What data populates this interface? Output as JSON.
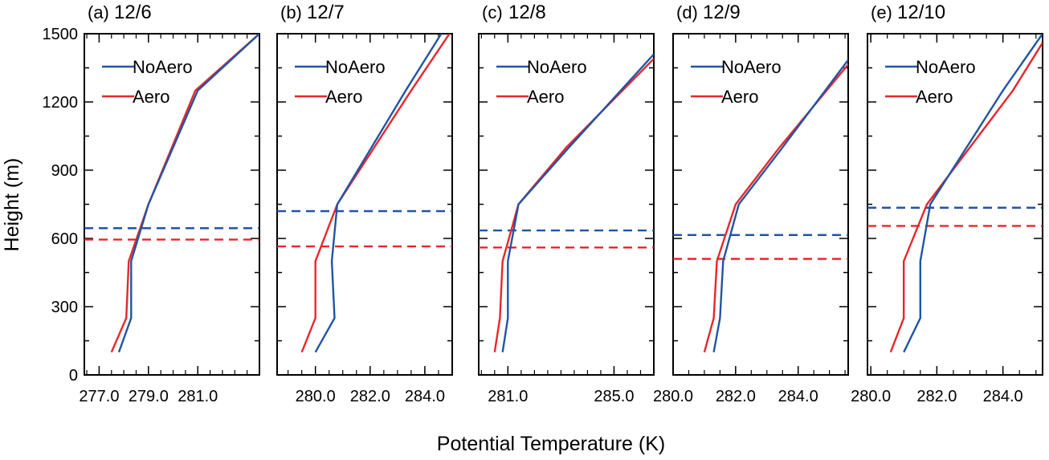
{
  "figure": {
    "xlabel": "Potential Temperature (K)",
    "ylabel": "Height (m)"
  },
  "colors": {
    "noaero": "#2155a3",
    "aero": "#e8262b"
  },
  "chart_data": [
    {
      "type": "line",
      "panel_label": "(a)",
      "title": "12/6",
      "xticks": [
        277.0,
        279.0,
        281.0
      ],
      "xtick_labels": [
        "277.0",
        "279.0",
        "281.0"
      ],
      "xlim": [
        276.4,
        283.5
      ],
      "ylim": [
        0,
        1500
      ],
      "yticks": [
        0,
        300,
        600,
        900,
        1200,
        1500
      ],
      "legend_position": "top-left",
      "series": [
        {
          "name": "NoAero",
          "x": [
            277.8,
            278.3,
            278.3,
            279.0,
            281.0,
            283.5
          ],
          "y": [
            100,
            250,
            500,
            750,
            1250,
            1500
          ]
        },
        {
          "name": "Aero",
          "x": [
            277.5,
            278.1,
            278.2,
            279.0,
            280.9,
            283.5
          ],
          "y": [
            100,
            250,
            500,
            750,
            1250,
            1500
          ]
        }
      ],
      "dashed_lines": [
        {
          "series": "NoAero",
          "y": 645
        },
        {
          "series": "Aero",
          "y": 595
        }
      ]
    },
    {
      "type": "line",
      "panel_label": "(b)",
      "title": "12/7",
      "xticks": [
        280.0,
        282.0,
        284.0
      ],
      "xtick_labels": [
        "280.0",
        "282.0",
        "284.0"
      ],
      "xlim": [
        278.6,
        285.0
      ],
      "ylim": [
        0,
        1500
      ],
      "yticks": [
        0,
        300,
        600,
        900,
        1200,
        1500
      ],
      "legend_position": "top-left",
      "series": [
        {
          "name": "NoAero",
          "x": [
            280.0,
            280.7,
            280.6,
            280.8,
            283.3,
            284.6
          ],
          "y": [
            100,
            250,
            500,
            750,
            1250,
            1500
          ]
        },
        {
          "name": "Aero",
          "x": [
            279.5,
            280.0,
            280.0,
            280.8,
            283.5,
            284.9
          ],
          "y": [
            100,
            250,
            500,
            750,
            1250,
            1500
          ]
        }
      ],
      "dashed_lines": [
        {
          "series": "NoAero",
          "y": 720
        },
        {
          "series": "Aero",
          "y": 565
        }
      ]
    },
    {
      "type": "line",
      "panel_label": "(c)",
      "title": "12/8",
      "xticks": [
        281.0,
        285.0
      ],
      "xtick_labels": [
        "281.0",
        "285.0"
      ],
      "xlim": [
        279.9,
        286.5
      ],
      "ylim": [
        0,
        1500
      ],
      "yticks": [
        0,
        300,
        600,
        900,
        1200,
        1500
      ],
      "legend_position": "top-left",
      "series": [
        {
          "name": "NoAero",
          "x": [
            280.8,
            281.0,
            281.0,
            281.4,
            283.3,
            286.5
          ],
          "y": [
            100,
            250,
            500,
            750,
            1000,
            1410
          ]
        },
        {
          "name": "Aero",
          "x": [
            280.5,
            280.7,
            280.8,
            281.4,
            283.2,
            286.5
          ],
          "y": [
            100,
            250,
            500,
            750,
            1000,
            1390
          ]
        }
      ],
      "dashed_lines": [
        {
          "series": "NoAero",
          "y": 635
        },
        {
          "series": "Aero",
          "y": 560
        }
      ]
    },
    {
      "type": "line",
      "panel_label": "(d)",
      "title": "12/9",
      "xticks": [
        280.0,
        282.0,
        284.0
      ],
      "xtick_labels": [
        "280.0",
        "282.0",
        "284.0"
      ],
      "xlim": [
        280.0,
        285.6
      ],
      "ylim": [
        0,
        1500
      ],
      "yticks": [
        0,
        300,
        600,
        900,
        1200,
        1500
      ],
      "legend_position": "top-left",
      "series": [
        {
          "name": "NoAero",
          "x": [
            281.3,
            281.5,
            281.6,
            282.1,
            283.5,
            285.6
          ],
          "y": [
            100,
            250,
            500,
            750,
            1000,
            1385
          ]
        },
        {
          "name": "Aero",
          "x": [
            281.0,
            281.3,
            281.4,
            282.0,
            283.4,
            285.6
          ],
          "y": [
            100,
            250,
            500,
            750,
            1000,
            1365
          ]
        }
      ],
      "dashed_lines": [
        {
          "series": "NoAero",
          "y": 615
        },
        {
          "series": "Aero",
          "y": 510
        }
      ]
    },
    {
      "type": "line",
      "panel_label": "(e)",
      "title": "12/10",
      "xticks": [
        280.0,
        282.0,
        284.0
      ],
      "xtick_labels": [
        "280.0",
        "282.0",
        "284.0"
      ],
      "xlim": [
        279.9,
        285.2
      ],
      "ylim": [
        0,
        1500
      ],
      "yticks": [
        0,
        300,
        600,
        900,
        1200,
        1500
      ],
      "legend_position": "top-left",
      "series": [
        {
          "name": "NoAero",
          "x": [
            281.0,
            281.5,
            281.5,
            281.8,
            284.0,
            285.2
          ],
          "y": [
            100,
            250,
            500,
            750,
            1250,
            1500
          ]
        },
        {
          "name": "Aero",
          "x": [
            280.6,
            281.0,
            281.0,
            281.7,
            284.3,
            285.2
          ],
          "y": [
            100,
            250,
            500,
            750,
            1250,
            1460
          ]
        }
      ],
      "dashed_lines": [
        {
          "series": "NoAero",
          "y": 735
        },
        {
          "series": "Aero",
          "y": 655
        }
      ]
    }
  ]
}
